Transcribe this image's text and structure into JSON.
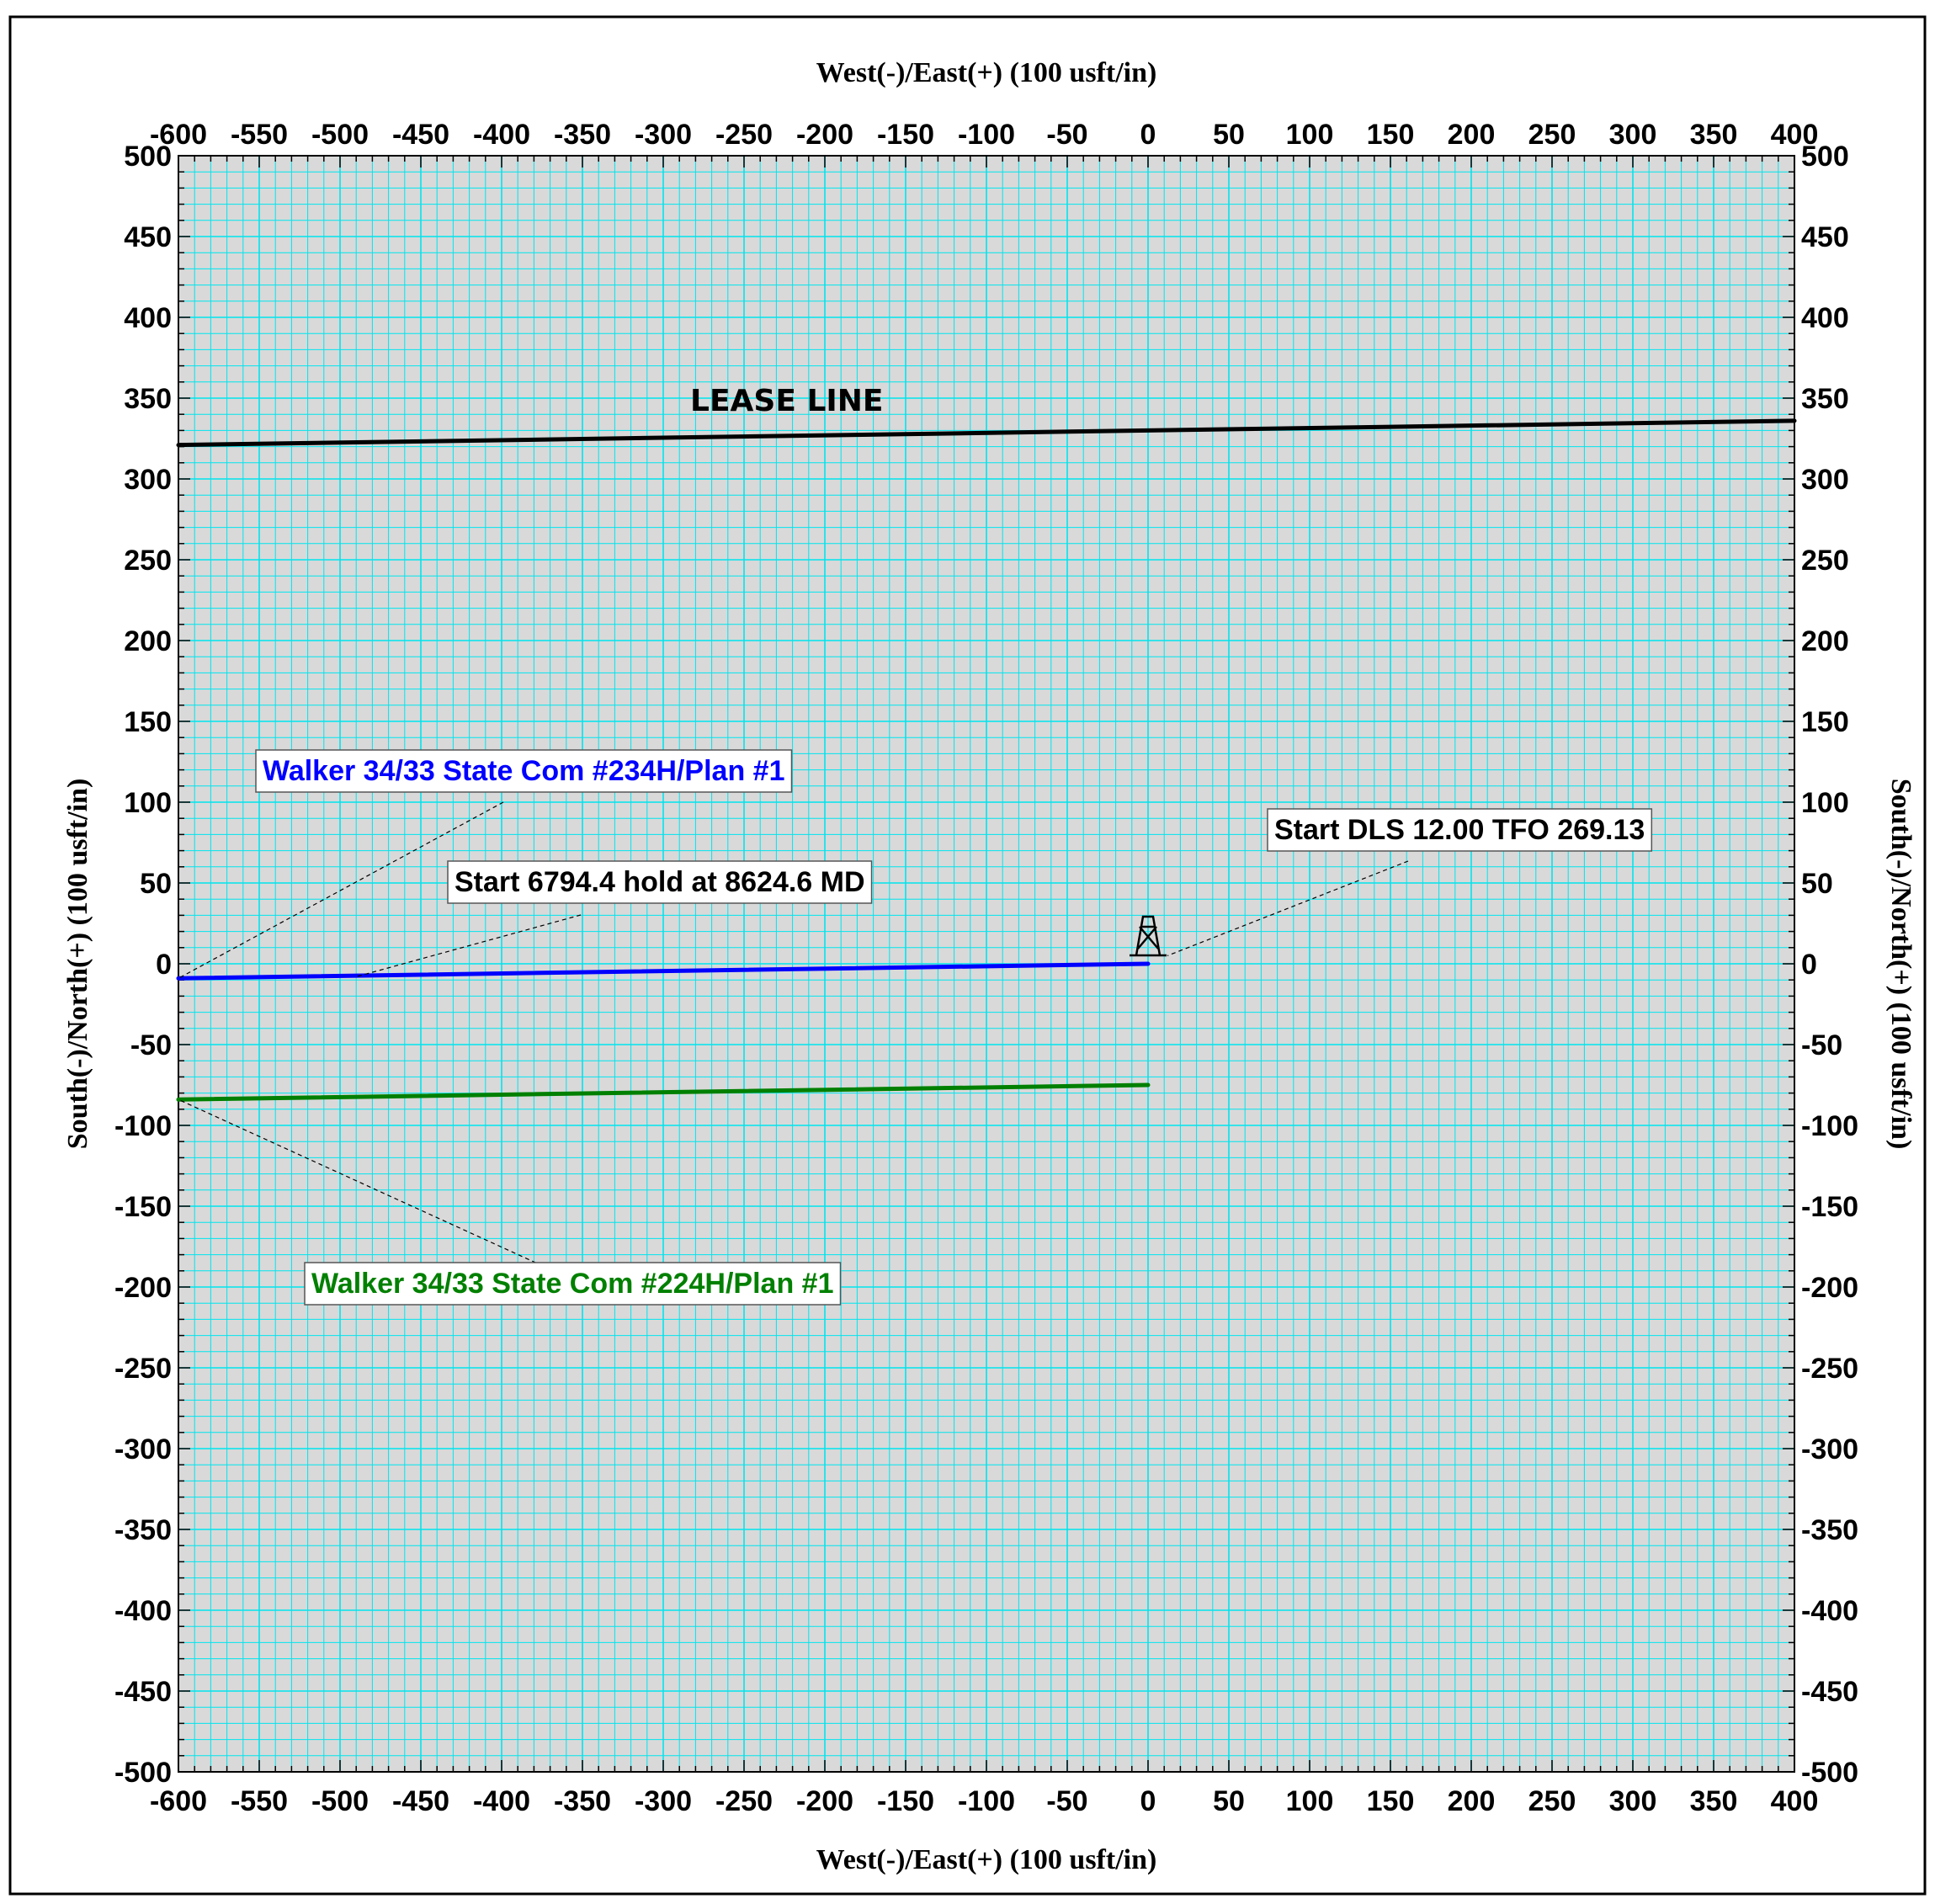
{
  "chart_data": {
    "type": "line",
    "title": "",
    "xlabel_top": "West(-)/East(+) (100 usft/in)",
    "xlabel_bottom": "West(-)/East(+) (100 usft/in)",
    "ylabel_left": "South(-)/North(+) (100 usft/in)",
    "ylabel_right": "South(-)/North(+) (100 usft/in)",
    "xlim": [
      -600,
      400
    ],
    "ylim": [
      -500,
      500
    ],
    "x_ticks": [
      -600,
      -550,
      -500,
      -450,
      -400,
      -350,
      -300,
      -250,
      -200,
      -150,
      -100,
      -50,
      0,
      50,
      100,
      150,
      200,
      250,
      300,
      350,
      400
    ],
    "y_ticks": [
      500,
      450,
      400,
      350,
      300,
      250,
      200,
      150,
      100,
      50,
      0,
      -50,
      -100,
      -150,
      -200,
      -250,
      -300,
      -350,
      -400,
      -450,
      -500
    ],
    "grid": true,
    "grid_color": "#00e5ee",
    "background_color": "#d9d9d9",
    "series": [
      {
        "name": "Walker 34/33 State Com #234H/Plan #1",
        "color": "#0000ff",
        "points": [
          [
            0,
            0
          ],
          [
            -600,
            -9
          ]
        ]
      },
      {
        "name": "Walker 34/33 State Com #224H/Plan #1",
        "color": "#008000",
        "points": [
          [
            0,
            -75
          ],
          [
            -600,
            -84
          ]
        ]
      },
      {
        "name": "LEASE LINE",
        "color": "#000000",
        "points": [
          [
            -600,
            321
          ],
          [
            400,
            336
          ]
        ]
      }
    ],
    "annotations": [
      {
        "text": "LEASE LINE",
        "color": "#000000"
      },
      {
        "text": "Walker 34/33 State Com #234H/Plan #1",
        "color": "#0000ff",
        "target": [
          -600,
          -9
        ]
      },
      {
        "text": "Start 6794.4 hold at 8624.6 MD",
        "color": "#000000",
        "target": [
          -490,
          -8
        ]
      },
      {
        "text": "Start DLS 12.00 TFO 269.13",
        "color": "#000000",
        "target": [
          12,
          5
        ]
      },
      {
        "text": "Walker 34/33 State Com #224H/Plan #1",
        "color": "#008000",
        "target": [
          -600,
          -84
        ]
      }
    ],
    "rig_symbol": {
      "icon": "drilling-rig-icon",
      "position": [
        0,
        0
      ]
    }
  }
}
